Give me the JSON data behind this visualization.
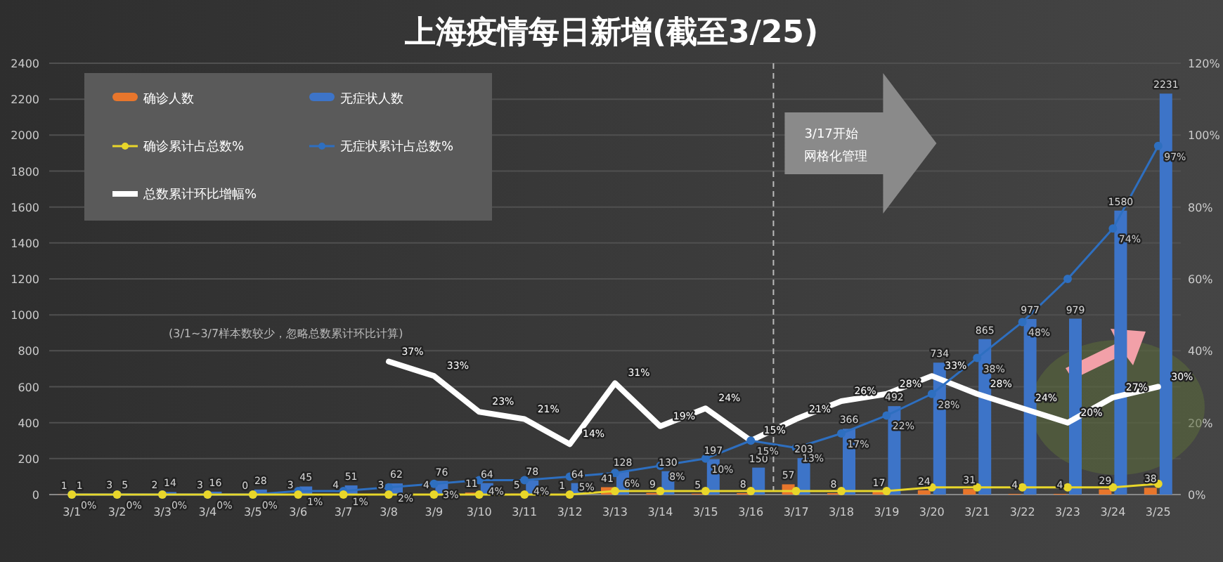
{
  "chart_data": {
    "type": "bar",
    "title": "上海疫情每日新增(截至3/25)",
    "categories": [
      "3/1",
      "3/2",
      "3/3",
      "3/4",
      "3/5",
      "3/6",
      "3/7",
      "3/8",
      "3/9",
      "3/10",
      "3/11",
      "3/12",
      "3/13",
      "3/14",
      "3/15",
      "3/16",
      "3/17",
      "3/18",
      "3/19",
      "3/20",
      "3/21",
      "3/22",
      "3/23",
      "3/24",
      "3/25"
    ],
    "series": [
      {
        "name": "确诊人数",
        "color": "#e8762c",
        "values": [
          1,
          3,
          2,
          3,
          0,
          3,
          4,
          3,
          4,
          11,
          5,
          1,
          41,
          9,
          5,
          8,
          57,
          8,
          17,
          24,
          31,
          4,
          4,
          29,
          38
        ],
        "value_labels": [
          "1",
          "3",
          "2",
          "3",
          "0",
          "3",
          "4",
          "3",
          "4",
          "11",
          "5",
          "1",
          "41",
          "9",
          "5",
          "8",
          "57",
          "8",
          "17",
          "24",
          "31",
          "4",
          "4",
          "29",
          "38"
        ]
      },
      {
        "name": "无症状人数",
        "color": "#3d74c8",
        "values": [
          1,
          5,
          14,
          16,
          28,
          45,
          51,
          62,
          76,
          64,
          78,
          64,
          128,
          130,
          197,
          150,
          203,
          366,
          492,
          734,
          865,
          977,
          979,
          1580,
          2231
        ],
        "value_labels": [
          "1",
          "5",
          "14",
          "16",
          "28",
          "45",
          "51",
          "62",
          "76",
          "64",
          "78",
          "64",
          "128",
          "130",
          "197",
          "150",
          "203",
          "366",
          "492",
          "734",
          "865",
          "977",
          "979",
          "1580",
          "2231"
        ]
      },
      {
        "name": "确诊累计占总数%",
        "type": "line",
        "axis": "y2",
        "color": "#e8d62a",
        "marker": "circle",
        "values": [
          0,
          0,
          0,
          0,
          0,
          0,
          0,
          0,
          0,
          0,
          0,
          0,
          1,
          1,
          1,
          1,
          1,
          1,
          1,
          2,
          2,
          2,
          2,
          2,
          3
        ]
      },
      {
        "name": "无症状累计占总数%",
        "type": "line",
        "axis": "y2",
        "color": "#2e6fc0",
        "marker": "circle",
        "values": [
          0,
          0,
          0,
          0,
          0,
          1,
          1,
          2,
          3,
          4,
          4,
          5,
          6,
          8,
          10,
          15,
          13,
          17,
          22,
          28,
          38,
          48,
          60,
          74,
          97
        ],
        "value_labels": [
          "0%",
          "0%",
          "0%",
          "0%",
          "0%",
          "1%",
          "1%",
          "2%",
          "3%",
          "4%",
          "4%",
          "5%",
          "6%",
          "8%",
          "10%",
          "15%",
          "13%",
          "17%",
          "22%",
          "28%",
          "38%",
          "48%",
          null,
          "74%",
          "97%"
        ]
      },
      {
        "name": "总数累计环比增幅%",
        "type": "line",
        "axis": "y2",
        "color": "#ffffff",
        "values": [
          null,
          null,
          null,
          null,
          null,
          null,
          null,
          37,
          33,
          23,
          21,
          14,
          31,
          19,
          24,
          15,
          21,
          26,
          28,
          33,
          28,
          24,
          20,
          27,
          30
        ],
        "value_labels": [
          null,
          null,
          null,
          null,
          null,
          null,
          null,
          "37%",
          "33%",
          "23%",
          "21%",
          "14%",
          "31%",
          "19%",
          "24%",
          "15%",
          "21%",
          "26%",
          "28%",
          "33%",
          "28%",
          "24%",
          "20%",
          "27%",
          "30%"
        ]
      }
    ],
    "ylim": [
      0,
      2400
    ],
    "yticks": [
      0,
      200,
      400,
      600,
      800,
      1000,
      1200,
      1400,
      1600,
      1800,
      2000,
      2200,
      2400
    ],
    "y2lim": [
      0,
      120
    ],
    "y2ticks": [
      {
        "value": 0,
        "label": "0%"
      },
      {
        "value": 20,
        "label": "20%"
      },
      {
        "value": 40,
        "label": "40%"
      },
      {
        "value": 60,
        "label": "60%"
      },
      {
        "value": 80,
        "label": "80%"
      },
      {
        "value": 100,
        "label": "100%"
      },
      {
        "value": 120,
        "label": "120%"
      }
    ],
    "grid": "y",
    "legend": "top left",
    "ref_lines": [
      {
        "axis": "x",
        "value": "3/17",
        "label": "3/17开始网格化管理",
        "line_style": "dashed",
        "color": "#bbbbbb"
      }
    ],
    "annotations": [
      "(3/1~3/7样本数较少，忽略总数累计环比计算)"
    ]
  }
}
